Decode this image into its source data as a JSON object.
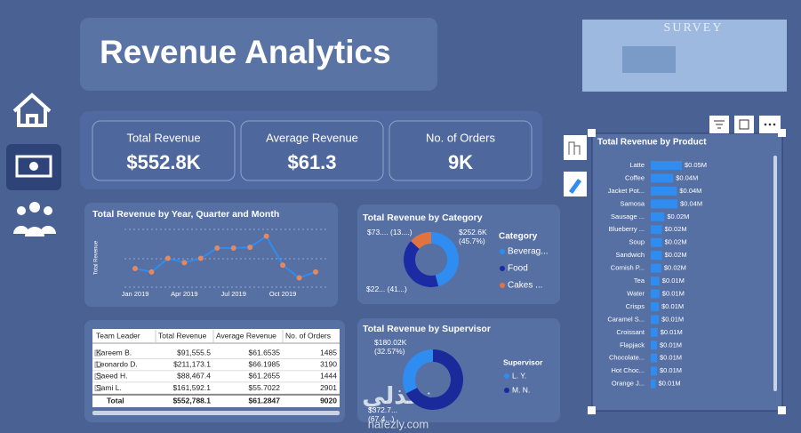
{
  "header": {
    "title": "Revenue Analytics",
    "logo": "SURVEY"
  },
  "kpis": [
    {
      "label": "Total Revenue",
      "value": "$552.8K"
    },
    {
      "label": "Average Revenue",
      "value": "$61.3"
    },
    {
      "label": "No. of Orders",
      "value": "9K"
    }
  ],
  "line_chart": {
    "type": "line",
    "title": "Total Revenue by Year, Quarter and Month",
    "y_label": "Total Revenue",
    "categories": [
      "Jan 2019",
      null,
      null,
      "Apr 2019",
      null,
      null,
      "Jul 2019",
      null,
      null,
      "Oct 2019",
      null,
      null
    ],
    "values": [
      42000,
      40000,
      48000,
      45500,
      48000,
      54000,
      54000,
      54500,
      61000,
      44000,
      36500,
      40000
    ],
    "ylim": [
      30000,
      65000
    ],
    "color": "#e8875c"
  },
  "category_chart": {
    "type": "donut",
    "title": "Total Revenue by Category",
    "legend_title": "Category",
    "categories": [
      "Beverag...",
      "Food",
      "Cakes ..."
    ],
    "values": [
      252600,
      226000,
      73000
    ],
    "value_labels": [
      "$252.6K (45.7%)",
      "$22... (41...)",
      "$73.... (13....)"
    ],
    "colors": [
      "#2f8cf0",
      "#1b2ba3",
      "#e0733f"
    ]
  },
  "supervisor_chart": {
    "type": "donut",
    "title": "Total Revenue by Supervisor",
    "legend_title": "Supervisor",
    "categories": [
      "L. Y.",
      "M. N."
    ],
    "values": [
      180020,
      372700
    ],
    "value_labels": [
      "$180.02K (32.57%)",
      "$372.7... (67.4...)"
    ],
    "colors": [
      "#2f8cf0",
      "#1a2a9a"
    ]
  },
  "table": {
    "columns": [
      "Team Leader",
      "Total Revenue",
      "Average Revenue",
      "No. of Orders"
    ],
    "rows": [
      [
        "Kareem B.",
        "$91,555.5",
        "$61.6535",
        "1485"
      ],
      [
        "Leonardo D.",
        "$211,173.1",
        "$66.1985",
        "3190"
      ],
      [
        "Saeed H.",
        "$88,467.4",
        "$61.2655",
        "1444"
      ],
      [
        "Sami L.",
        "$161,592.1",
        "$55.7022",
        "2901"
      ]
    ],
    "total": [
      "Total",
      "$552,788.1",
      "$61.2847",
      "9020"
    ]
  },
  "product_chart": {
    "type": "hbar",
    "title": "Total Revenue by Product",
    "categories": [
      "Latte",
      "Coffee",
      "Jacket Pot...",
      "Samosa",
      "Sausage ...",
      "Blueberry ...",
      "Soup",
      "Sandwich",
      "Cornish P...",
      "Tea",
      "Water",
      "Crisps",
      "Caramel S...",
      "Croissant",
      "Flapjack",
      "Chocolate...",
      "Hot Choc...",
      "Orange J..."
    ],
    "values": [
      50000,
      36000,
      42000,
      43000,
      22000,
      18000,
      18000,
      18000,
      17000,
      14000,
      14000,
      13000,
      13000,
      11000,
      10000,
      10000,
      10000,
      8000
    ],
    "value_labels": [
      "$0.05M",
      "$0.04M",
      "$0.04M",
      "$0.04M",
      "$0.02M",
      "$0.02M",
      "$0.02M",
      "$0.02M",
      "$0.02M",
      "$0.01M",
      "$0.01M",
      "$0.01M",
      "$0.01M",
      "$0.01M",
      "$0.01M",
      "$0.01M",
      "$0.01M",
      "$0.01M"
    ],
    "xlim": [
      0,
      50000
    ],
    "color": "#2f8cf0"
  },
  "watermark": {
    "arabic": "نفذلي",
    "latin": "nafezly.com"
  }
}
